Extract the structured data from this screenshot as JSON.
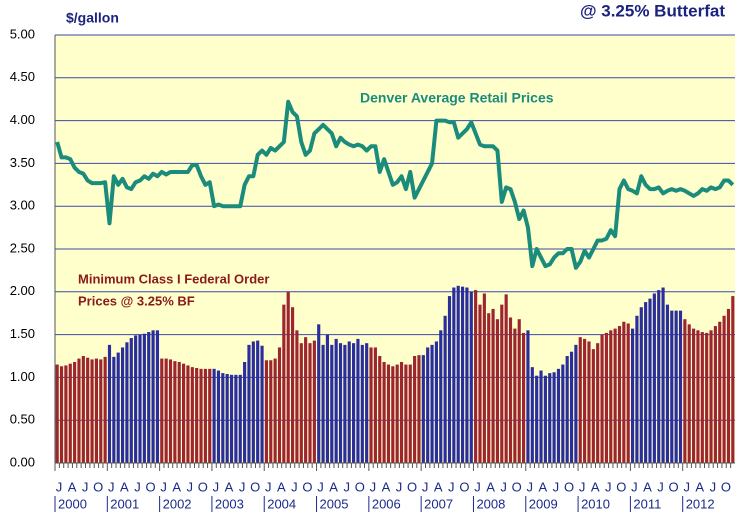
{
  "chart_data": {
    "type": "bar-line",
    "title": "@ 3.25% Butterfat",
    "y_label": "$/gallon",
    "annotations": [
      "Denver Average Retail Prices",
      "Minimum Class I Federal Order",
      "Prices @ 3.25% BF"
    ],
    "categories": [
      "J",
      null,
      null,
      "A",
      null,
      null,
      "J",
      null,
      null,
      "O",
      null,
      null,
      "J",
      null,
      null,
      "A",
      null,
      null,
      "J",
      null,
      null,
      "O",
      null,
      null,
      "J",
      null,
      null,
      "A",
      null,
      null,
      "J",
      null,
      null,
      "O",
      null,
      null,
      "J",
      null,
      null,
      "A",
      null,
      null,
      "J",
      null,
      null,
      "O",
      null,
      null,
      "J",
      null,
      null,
      "A",
      null,
      null,
      "J",
      null,
      null,
      "O",
      null,
      null,
      "J",
      null,
      null,
      "A",
      null,
      null,
      "J",
      null,
      null,
      "O",
      null,
      null,
      "J",
      null,
      null,
      "A",
      null,
      null,
      "J",
      null,
      null,
      "O",
      null,
      null,
      "J",
      null,
      null,
      "A",
      null,
      null,
      "J",
      null,
      null,
      "O",
      null,
      null,
      "J",
      null,
      null,
      "A",
      null,
      null,
      "J",
      null,
      null,
      "O",
      null,
      null,
      "J",
      null,
      null,
      "A",
      null,
      null,
      "J",
      null,
      null,
      "O",
      null,
      null,
      "J",
      null,
      null,
      "A",
      null,
      null,
      "J",
      null,
      null,
      "O",
      null,
      null,
      "J",
      null,
      null,
      "A",
      null,
      null,
      "J",
      null,
      null,
      "O",
      null,
      null,
      "J",
      null,
      null,
      "A",
      null,
      null,
      "J",
      null,
      null,
      "O",
      null,
      null
    ],
    "years": [
      "2000",
      "2001",
      "2002",
      "2003",
      "2004",
      "2005",
      "2006",
      "2007",
      "2008",
      "2009",
      "2010",
      "2011",
      "2012"
    ],
    "ylim": [
      0,
      5
    ],
    "yticks": [
      {
        "value": 0,
        "label": "0.00"
      },
      {
        "value": 0.5,
        "label": "0.50"
      },
      {
        "value": 1,
        "label": "1.00"
      },
      {
        "value": 1.5,
        "label": "1.50"
      },
      {
        "value": 2,
        "label": "2.00"
      },
      {
        "value": 2.5,
        "label": "2.50"
      },
      {
        "value": 3,
        "label": "3.00"
      },
      {
        "value": 3.5,
        "label": "3.50"
      },
      {
        "value": 4,
        "label": "4.00"
      },
      {
        "value": 4.5,
        "label": "4.50"
      },
      {
        "value": 5,
        "label": "5.00"
      }
    ],
    "grid": true,
    "background": "#ffffcc",
    "series": [
      {
        "kind": "bar",
        "year_colors": [
          "#9c2530",
          "#2a2e9c",
          "#9c2530",
          "#2a2e9c",
          "#9c2530",
          "#2a2e9c",
          "#9c2530",
          "#2a2e9c",
          "#9c2530",
          "#2a2e9c",
          "#9c2530",
          "#2a2e9c",
          "#9c2530"
        ],
        "values": [
          1.15,
          1.13,
          1.14,
          1.16,
          1.18,
          1.22,
          1.25,
          1.23,
          1.21,
          1.22,
          1.21,
          1.24,
          1.38,
          1.24,
          1.29,
          1.35,
          1.41,
          1.46,
          1.49,
          1.5,
          1.51,
          1.53,
          1.55,
          1.55,
          1.22,
          1.22,
          1.21,
          1.19,
          1.18,
          1.16,
          1.14,
          1.12,
          1.11,
          1.1,
          1.1,
          1.1,
          1.1,
          1.08,
          1.05,
          1.04,
          1.03,
          1.03,
          1.03,
          1.18,
          1.38,
          1.42,
          1.43,
          1.37,
          1.2,
          1.2,
          1.22,
          1.35,
          1.85,
          2.0,
          1.82,
          1.55,
          1.4,
          1.47,
          1.4,
          1.43,
          1.62,
          1.38,
          1.5,
          1.38,
          1.45,
          1.4,
          1.38,
          1.42,
          1.4,
          1.45,
          1.38,
          1.4,
          1.35,
          1.35,
          1.25,
          1.18,
          1.15,
          1.13,
          1.15,
          1.18,
          1.15,
          1.15,
          1.25,
          1.26,
          1.26,
          1.35,
          1.38,
          1.42,
          1.55,
          1.72,
          1.95,
          2.05,
          2.07,
          2.06,
          2.05,
          2.0,
          2.02,
          1.85,
          1.98,
          1.75,
          1.8,
          1.68,
          1.85,
          1.97,
          1.7,
          1.57,
          1.68,
          1.52,
          1.55,
          1.12,
          1.02,
          1.08,
          1.02,
          1.05,
          1.06,
          1.1,
          1.15,
          1.25,
          1.3,
          1.38,
          1.47,
          1.45,
          1.42,
          1.33,
          1.4,
          1.5,
          1.52,
          1.55,
          1.57,
          1.6,
          1.65,
          1.63,
          1.57,
          1.72,
          1.82,
          1.88,
          1.92,
          1.98,
          2.02,
          2.05,
          1.85,
          1.78,
          1.78,
          1.78,
          1.68,
          1.62,
          1.57,
          1.55,
          1.53,
          1.52,
          1.55,
          1.6,
          1.65,
          1.72,
          1.8,
          1.95
        ]
      },
      {
        "kind": "line",
        "color": "#1b8c7c",
        "values": [
          3.75,
          3.57,
          3.57,
          3.55,
          3.45,
          3.4,
          3.38,
          3.3,
          3.27,
          3.27,
          3.27,
          3.28,
          2.8,
          3.35,
          3.25,
          3.32,
          3.22,
          3.2,
          3.28,
          3.3,
          3.35,
          3.32,
          3.38,
          3.35,
          3.4,
          3.37,
          3.4,
          3.4,
          3.4,
          3.4,
          3.4,
          3.48,
          3.48,
          3.35,
          3.25,
          3.28,
          3.0,
          3.02,
          3.0,
          3.0,
          3.0,
          3.0,
          3.0,
          3.25,
          3.35,
          3.35,
          3.6,
          3.65,
          3.6,
          3.68,
          3.65,
          3.7,
          3.75,
          4.22,
          4.1,
          4.05,
          3.75,
          3.6,
          3.65,
          3.85,
          3.9,
          3.95,
          3.9,
          3.85,
          3.7,
          3.8,
          3.75,
          3.72,
          3.7,
          3.72,
          3.7,
          3.65,
          3.7,
          3.7,
          3.4,
          3.55,
          3.4,
          3.25,
          3.28,
          3.35,
          3.2,
          3.4,
          3.1,
          3.2,
          3.3,
          3.4,
          3.5,
          4.0,
          4.0,
          4.0,
          3.98,
          3.98,
          3.8,
          3.85,
          3.9,
          3.98,
          3.85,
          3.72,
          3.7,
          3.7,
          3.7,
          3.65,
          3.05,
          3.22,
          3.2,
          3.05,
          2.85,
          2.95,
          2.75,
          2.3,
          2.5,
          2.4,
          2.3,
          2.32,
          2.4,
          2.45,
          2.45,
          2.5,
          2.5,
          2.28,
          2.35,
          2.48,
          2.4,
          2.5,
          2.6,
          2.6,
          2.62,
          2.72,
          2.65,
          3.2,
          3.3,
          3.2,
          3.18,
          3.15,
          3.35,
          3.25,
          3.2,
          3.2,
          3.22,
          3.15,
          3.18,
          3.2,
          3.18,
          3.2,
          3.18,
          3.15,
          3.12,
          3.15,
          3.2,
          3.18,
          3.22,
          3.2,
          3.22,
          3.3,
          3.3,
          3.25
        ]
      }
    ]
  }
}
